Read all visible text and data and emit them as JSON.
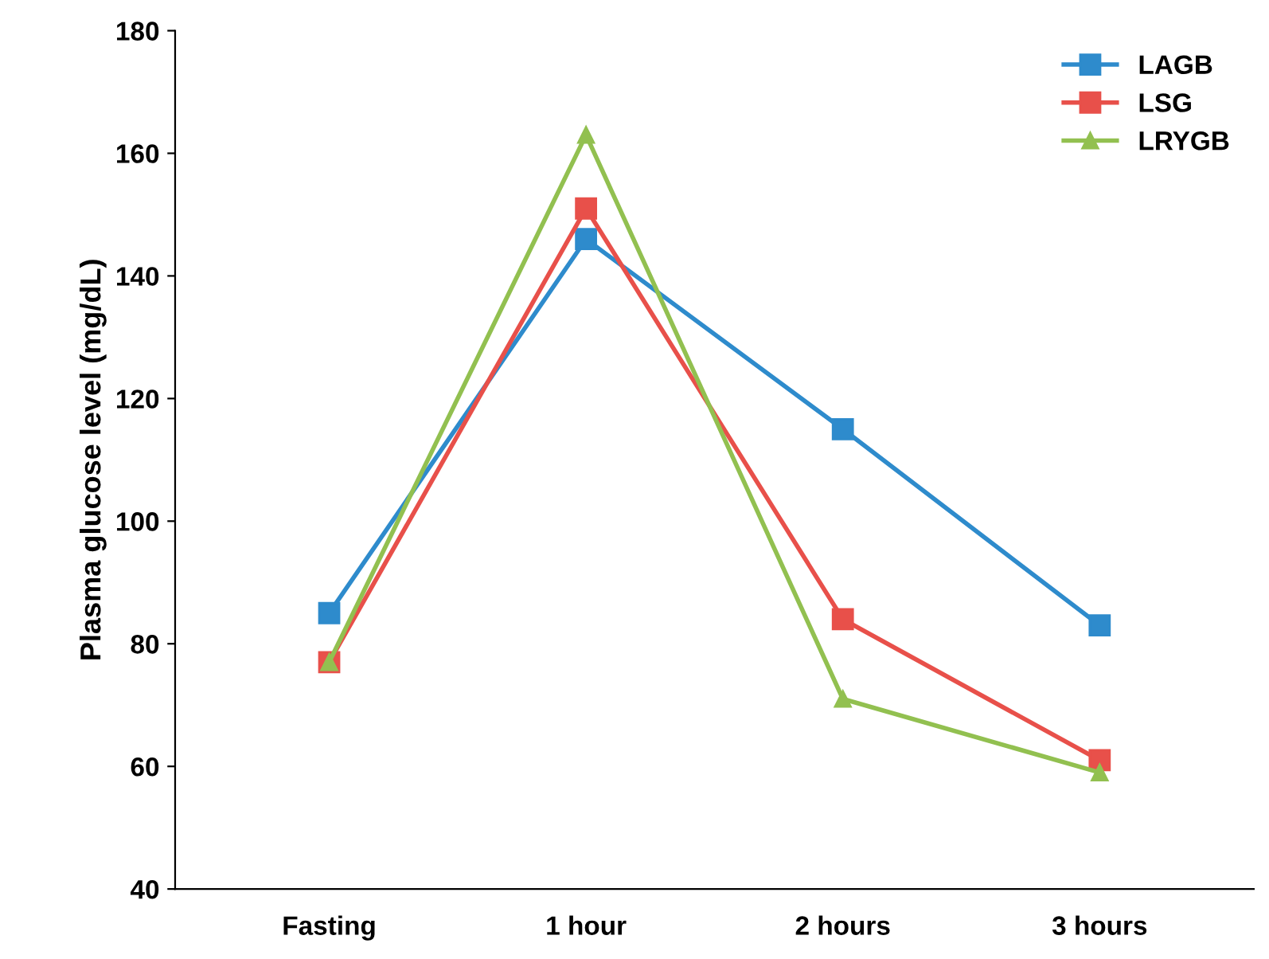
{
  "chart_data": {
    "type": "line",
    "ylabel": "Plasma glucose level (mg/dL)",
    "categories": [
      "Fasting",
      "1 hour",
      "2 hours",
      "3 hours"
    ],
    "series": [
      {
        "name": "LAGB",
        "color": "#2e8bcc",
        "marker": "square",
        "values": [
          85,
          146,
          115,
          83
        ]
      },
      {
        "name": "LSG",
        "color": "#e8504a",
        "marker": "square",
        "values": [
          77,
          151,
          84,
          61
        ]
      },
      {
        "name": "LRYGB",
        "color": "#92c050",
        "marker": "triangle",
        "values": [
          77,
          163,
          71,
          59
        ]
      }
    ],
    "ylim": [
      40,
      180
    ],
    "yticks": [
      40,
      60,
      80,
      100,
      120,
      140,
      160,
      180
    ],
    "grid": false,
    "legend": "top right",
    "line_style": "solid"
  }
}
